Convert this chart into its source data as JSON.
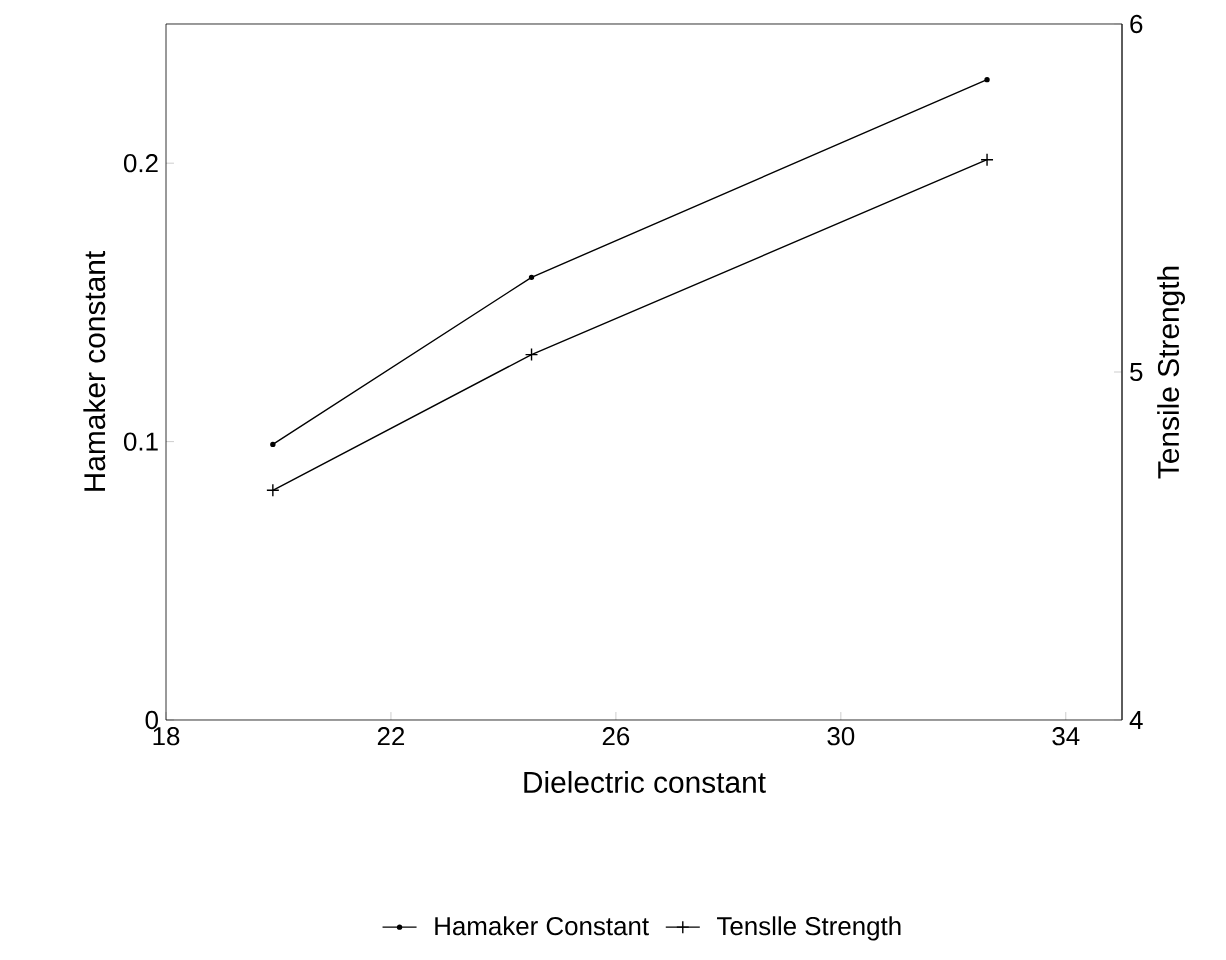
{
  "chart_data": {
    "type": "line",
    "xlabel": "Dielectric constant",
    "ylabel": "Hamaker constant",
    "y2label": "Tensile Strength",
    "xlim": [
      18,
      35
    ],
    "xticks": [
      18,
      22,
      26,
      30,
      34
    ],
    "ylim": [
      0,
      0.25
    ],
    "yticks": [
      0,
      0.1,
      0.2
    ],
    "y2lim": [
      4,
      6
    ],
    "y2ticks": [
      4,
      5,
      6
    ],
    "grid": false,
    "legend": "bottom",
    "line_style": "solid",
    "series": [
      {
        "name": "Hamaker Constant",
        "color": "#000000",
        "marker": "circle",
        "x": [
          19.9,
          24.5,
          32.6
        ],
        "values": [
          0.099,
          0.159,
          0.23
        ]
      },
      {
        "name": "Tenslle Strength",
        "color": "#000000",
        "marker": "cross",
        "axis": "y2",
        "x": [
          19.9,
          24.5,
          32.6
        ],
        "values": [
          4.66,
          5.05,
          5.61
        ]
      }
    ]
  }
}
